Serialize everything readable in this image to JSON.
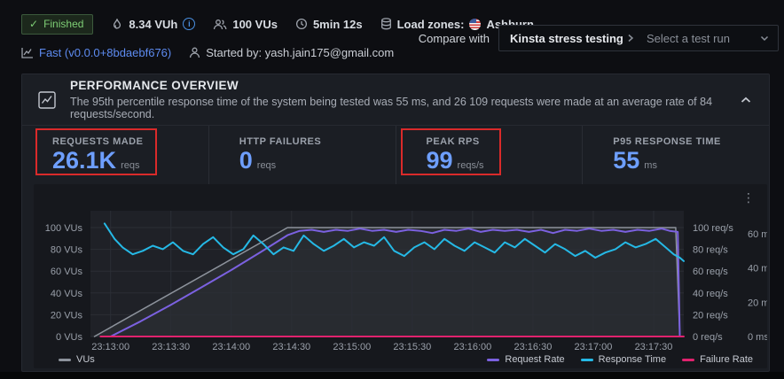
{
  "topbar": {
    "status_badge": "Finished",
    "vuh": "8.34 VUh",
    "vus": "100 VUs",
    "duration": "5min 12s",
    "load_zones_label": "Load zones:",
    "load_zone": "Ashburn",
    "runner": "Fast (v0.0.0+8bdaebf676)",
    "started_by": "Started by: yash.jain175@gmail.com",
    "compare_label": "Compare with",
    "compare_project": "Kinsta stress testing",
    "compare_placeholder": "Select a test run"
  },
  "panel": {
    "title": "PERFORMANCE OVERVIEW",
    "description": "The 95th percentile response time of the system being tested was 55 ms, and 26 109 requests were made at an average rate of 84 requests/second."
  },
  "stats": [
    {
      "label": "REQUESTS MADE",
      "value": "26.1K",
      "unit": "reqs",
      "highlighted": true
    },
    {
      "label": "HTTP FAILURES",
      "value": "0",
      "unit": "reqs",
      "highlighted": false
    },
    {
      "label": "PEAK RPS",
      "value": "99",
      "unit": "reqs/s",
      "highlighted": true
    },
    {
      "label": "P95 RESPONSE TIME",
      "value": "55",
      "unit": "ms",
      "highlighted": false
    }
  ],
  "colors": {
    "accent_blue": "#6e9fff",
    "link_blue": "#5d8bf0",
    "status_green": "#7ece75",
    "annotation_red": "#da2a2a"
  },
  "chart_data": {
    "type": "line",
    "grid": true,
    "grid_color": "#2b2e35",
    "plot_bg": "#1f2127",
    "t_domain": [
      0,
      295
    ],
    "x_ticks": [
      {
        "t": 10,
        "label": "23:13:00"
      },
      {
        "t": 40,
        "label": "23:13:30"
      },
      {
        "t": 70,
        "label": "23:14:00"
      },
      {
        "t": 100,
        "label": "23:14:30"
      },
      {
        "t": 130,
        "label": "23:15:00"
      },
      {
        "t": 160,
        "label": "23:15:30"
      },
      {
        "t": 190,
        "label": "23:16:00"
      },
      {
        "t": 220,
        "label": "23:16:30"
      },
      {
        "t": 250,
        "label": "23:17:00"
      },
      {
        "t": 280,
        "label": "23:17:30"
      }
    ],
    "axes": {
      "left": {
        "suffix": " VUs",
        "ticks": [
          100,
          80,
          60,
          40,
          20,
          0
        ],
        "min": 0,
        "max": 100
      },
      "right_rps": {
        "suffix": " req/s",
        "ticks": [
          100,
          80,
          60,
          40,
          20,
          0
        ],
        "min": 0,
        "max": 100
      },
      "right_ms": {
        "suffix": " ms",
        "ticks": [
          60,
          40,
          20,
          0
        ],
        "min": 0,
        "max": 64
      }
    },
    "legend_position": "bottom",
    "series": [
      {
        "name": "VUs",
        "color": "#8d939c",
        "scale": "vu",
        "width": 1.5,
        "fill": true,
        "points": [
          [
            2,
            0
          ],
          [
            98,
            100
          ],
          [
            291,
            100
          ],
          [
            293,
            0
          ]
        ]
      },
      {
        "name": "Request Rate",
        "color": "#7b61e0",
        "scale": "rps",
        "width": 2,
        "points": [
          [
            10,
            0
          ],
          [
            25,
            14
          ],
          [
            40,
            29
          ],
          [
            55,
            45
          ],
          [
            70,
            61
          ],
          [
            85,
            78
          ],
          [
            98,
            93
          ],
          [
            104,
            97
          ],
          [
            110,
            98
          ],
          [
            116,
            96
          ],
          [
            122,
            98
          ],
          [
            128,
            97
          ],
          [
            134,
            99
          ],
          [
            140,
            97
          ],
          [
            146,
            98
          ],
          [
            152,
            96
          ],
          [
            158,
            98
          ],
          [
            164,
            97
          ],
          [
            170,
            95
          ],
          [
            176,
            98
          ],
          [
            182,
            97
          ],
          [
            188,
            99
          ],
          [
            194,
            96
          ],
          [
            200,
            98
          ],
          [
            206,
            97
          ],
          [
            212,
            98
          ],
          [
            218,
            96
          ],
          [
            224,
            98
          ],
          [
            230,
            95
          ],
          [
            236,
            98
          ],
          [
            242,
            97
          ],
          [
            248,
            99
          ],
          [
            254,
            97
          ],
          [
            260,
            98
          ],
          [
            266,
            96
          ],
          [
            272,
            98
          ],
          [
            278,
            97
          ],
          [
            284,
            99
          ],
          [
            288,
            97
          ],
          [
            292,
            96
          ],
          [
            293,
            0
          ]
        ]
      },
      {
        "name": "Response Time",
        "color": "#25b9e6",
        "scale": "ms",
        "width": 2,
        "points": [
          [
            7,
            66
          ],
          [
            12,
            57
          ],
          [
            16,
            52
          ],
          [
            21,
            48
          ],
          [
            26,
            50
          ],
          [
            31,
            53
          ],
          [
            36,
            51
          ],
          [
            41,
            55
          ],
          [
            46,
            50
          ],
          [
            51,
            48
          ],
          [
            56,
            54
          ],
          [
            61,
            58
          ],
          [
            66,
            52
          ],
          [
            71,
            48
          ],
          [
            76,
            51
          ],
          [
            81,
            59
          ],
          [
            86,
            54
          ],
          [
            91,
            48
          ],
          [
            96,
            52
          ],
          [
            101,
            50
          ],
          [
            106,
            59
          ],
          [
            111,
            54
          ],
          [
            116,
            50
          ],
          [
            121,
            53
          ],
          [
            126,
            57
          ],
          [
            131,
            52
          ],
          [
            136,
            55
          ],
          [
            141,
            53
          ],
          [
            146,
            58
          ],
          [
            151,
            50
          ],
          [
            156,
            47
          ],
          [
            161,
            52
          ],
          [
            166,
            55
          ],
          [
            171,
            51
          ],
          [
            176,
            57
          ],
          [
            181,
            53
          ],
          [
            186,
            50
          ],
          [
            191,
            55
          ],
          [
            196,
            52
          ],
          [
            201,
            49
          ],
          [
            206,
            55
          ],
          [
            211,
            52
          ],
          [
            216,
            57
          ],
          [
            221,
            53
          ],
          [
            226,
            49
          ],
          [
            231,
            54
          ],
          [
            236,
            51
          ],
          [
            241,
            47
          ],
          [
            246,
            50
          ],
          [
            251,
            46
          ],
          [
            256,
            49
          ],
          [
            261,
            51
          ],
          [
            266,
            55
          ],
          [
            271,
            52
          ],
          [
            276,
            54
          ],
          [
            281,
            57
          ],
          [
            286,
            52
          ],
          [
            290,
            48
          ],
          [
            293,
            46
          ],
          [
            295,
            44
          ]
        ]
      },
      {
        "name": "Failure Rate",
        "color": "#e0226e",
        "scale": "rps",
        "width": 2,
        "points": [
          [
            5,
            0
          ],
          [
            295,
            0
          ]
        ]
      }
    ]
  }
}
